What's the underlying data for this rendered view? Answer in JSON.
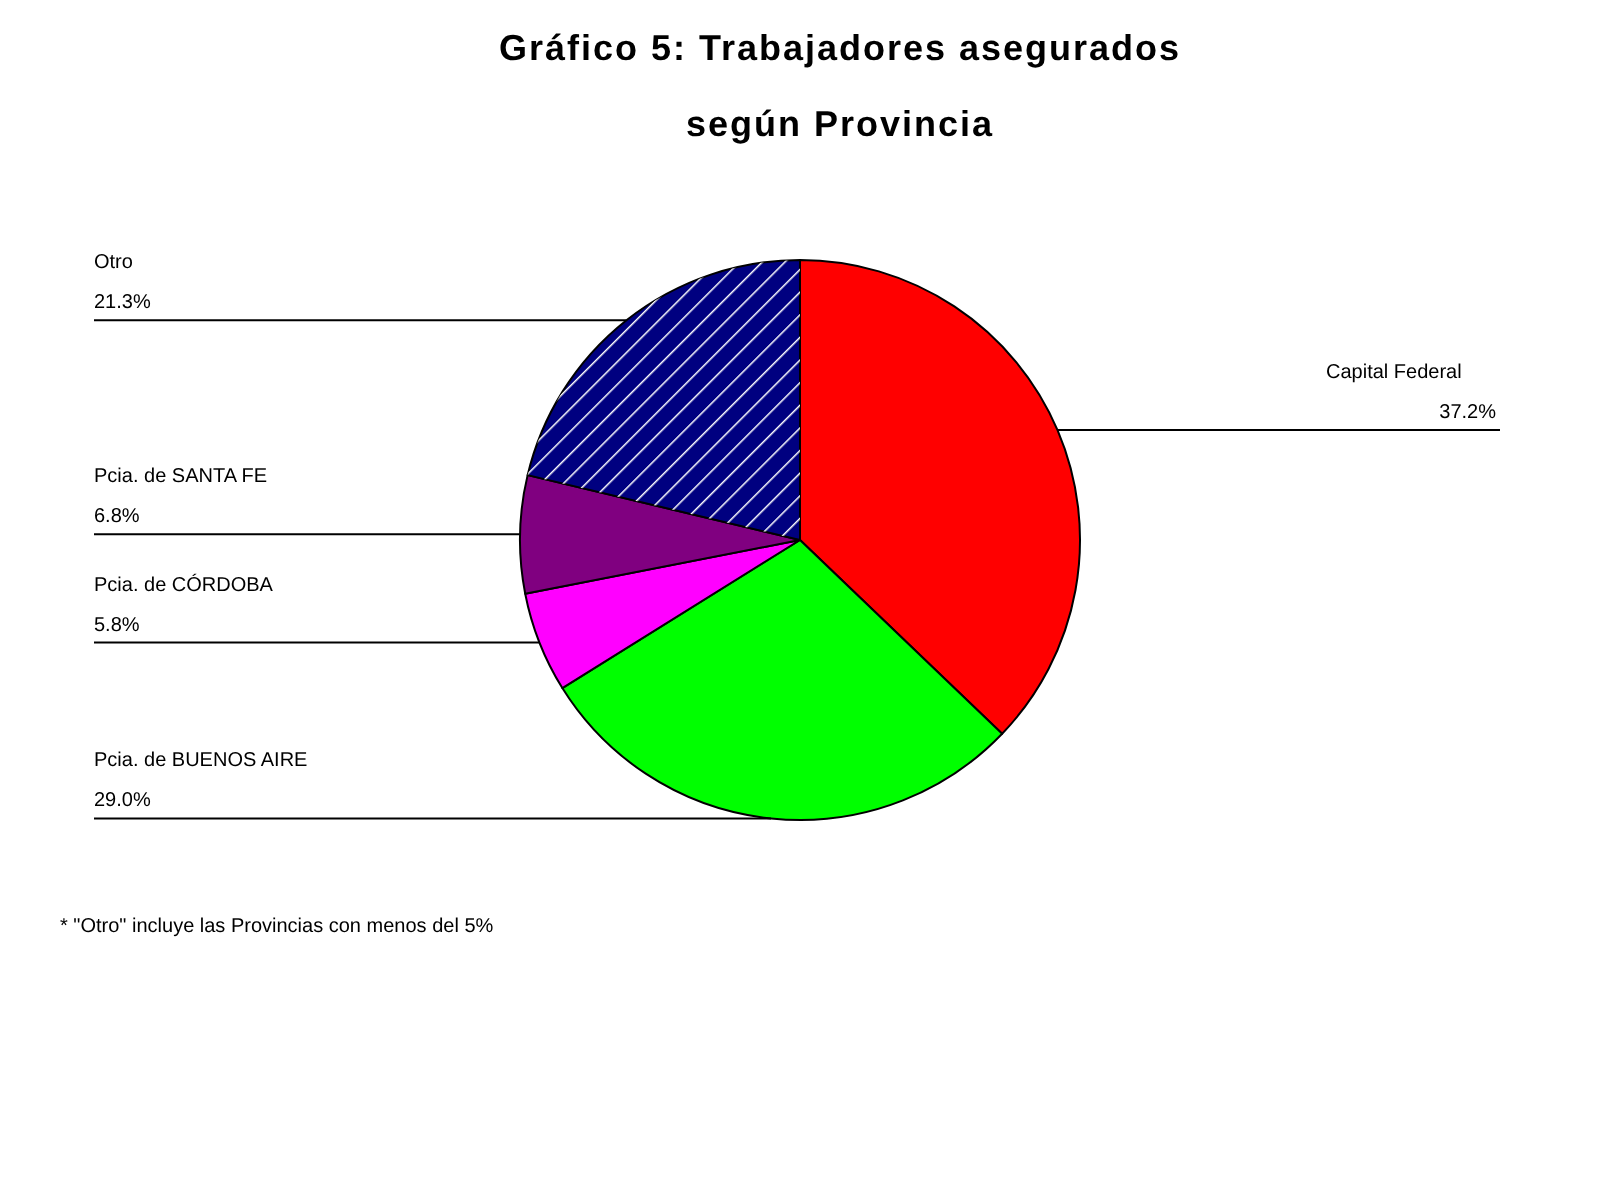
{
  "chart_data": {
    "type": "pie",
    "title": "Gráfico 5: Trabajadores asegurados según Provincia",
    "categories": [
      "Capital Federal",
      "Pcia. de BUENOS AIRE",
      "Pcia. de CÓRDOBA",
      "Pcia. de SANTA FE",
      "Otro"
    ],
    "values": [
      37.2,
      29.0,
      5.8,
      6.8,
      21.3
    ],
    "value_labels": [
      "37.2%",
      "29.0%",
      "5.8%",
      "6.8%",
      "21.3%"
    ],
    "colors": [
      "#ff0000",
      "#00ff00",
      "#ff00ff",
      "#800080",
      "#000080"
    ],
    "annotations": [
      "* \"Otro\" incluye las Provincias con menos del 5%"
    ]
  }
}
